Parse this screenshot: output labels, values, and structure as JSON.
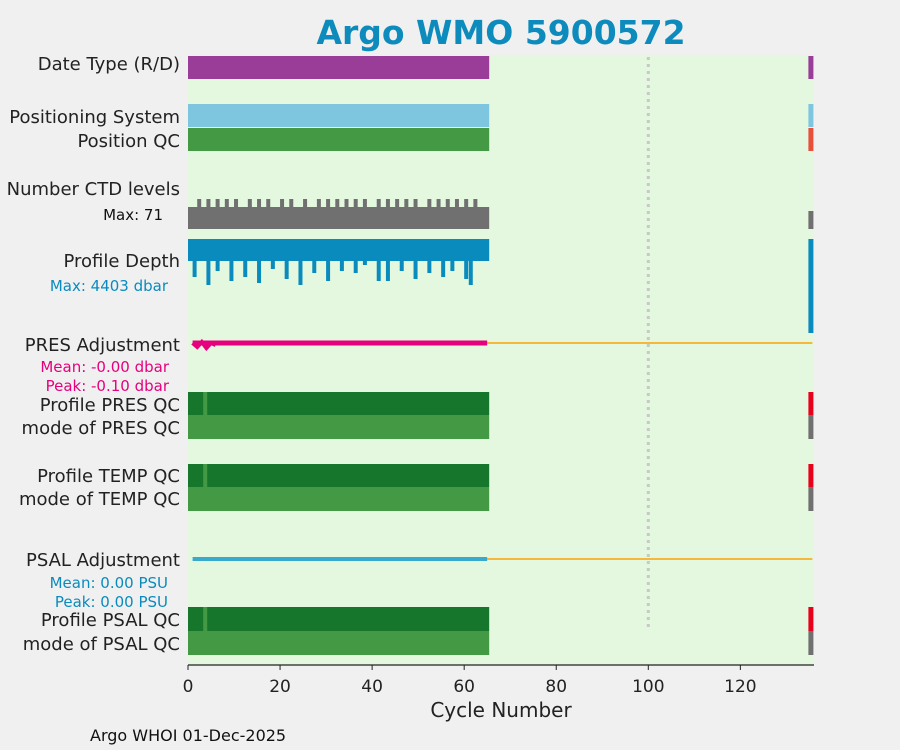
{
  "title": "Argo WMO 5900572",
  "footer": "Argo WHOI 01-Dec-2025",
  "xlabel": "Cycle Number",
  "colors": {
    "background_plot": "#e3f8df",
    "page": "#f0f0f0",
    "title": "#0e8bbd",
    "purple": "#993d99",
    "light_blue": "#7ec6e0",
    "green": "#449944",
    "dark_green": "#16772c",
    "gray": "#707070",
    "blue": "#0a8bbd",
    "magenta": "#e6007e",
    "orange": "#f5b83d",
    "red": "#e8001c",
    "red_light": "#e8503c",
    "psal_blue": "#39a9cc",
    "dotted": "#c8c8c8"
  },
  "rows": {
    "date_type": "Date Type (R/D)",
    "positioning_system": "Positioning System",
    "position_qc": "Position QC",
    "n_ctd": "Number CTD levels",
    "n_ctd_max": "Max: 71",
    "profile_depth": "Profile Depth",
    "profile_depth_max": "Max: 4403 dbar",
    "pres_adj": "PRES Adjustment",
    "pres_adj_mean": "Mean: -0.00 dbar",
    "pres_adj_peak": "Peak: -0.10 dbar",
    "profile_pres_qc": "Profile PRES QC",
    "mode_pres_qc": "mode of PRES QC",
    "profile_temp_qc": "Profile TEMP QC",
    "mode_temp_qc": "mode of TEMP QC",
    "psal_adj": "PSAL Adjustment",
    "psal_adj_mean": "Mean: 0.00 PSU",
    "psal_adj_peak": "Peak: 0.00 PSU",
    "profile_psal_qc": "Profile PSAL QC",
    "mode_psal_qc": "mode of PSAL QC"
  },
  "chart_data": {
    "type": "bar",
    "title": "Argo WMO 5900572",
    "xlabel": "Cycle Number",
    "xlim": [
      0,
      136
    ],
    "xticks": [
      0,
      20,
      40,
      60,
      80,
      100,
      120
    ],
    "cycles_range": [
      0,
      65
    ],
    "last_cycle": 135,
    "dotted_marker_cycle": 100,
    "tracks": [
      {
        "name": "Date Type (R/D)",
        "range": [
          0,
          65
        ],
        "last": 135
      },
      {
        "name": "Positioning System",
        "range": [
          0,
          65
        ],
        "last": 135
      },
      {
        "name": "Position QC",
        "range": [
          0,
          65
        ],
        "last": 135
      },
      {
        "name": "Number CTD levels",
        "range": [
          0,
          65
        ],
        "max": 71,
        "last": 135
      },
      {
        "name": "Profile Depth",
        "range": [
          0,
          65
        ],
        "max_dbar": 4403,
        "last": 135
      },
      {
        "name": "PRES Adjustment",
        "range": [
          0,
          65
        ],
        "mean_dbar": -0.0,
        "peak_dbar": -0.1,
        "extends_to": 135
      },
      {
        "name": "Profile PRES QC",
        "range": [
          0,
          65
        ],
        "last": 135
      },
      {
        "name": "mode of PRES QC",
        "range": [
          0,
          65
        ],
        "last": 135
      },
      {
        "name": "Profile TEMP QC",
        "range": [
          0,
          65
        ],
        "last": 135
      },
      {
        "name": "mode of TEMP QC",
        "range": [
          0,
          65
        ],
        "last": 135
      },
      {
        "name": "PSAL Adjustment",
        "range": [
          0,
          65
        ],
        "mean_psu": 0.0,
        "peak_psu": 0.0,
        "extends_to": 135
      },
      {
        "name": "Profile PSAL QC",
        "range": [
          0,
          65
        ],
        "last": 135
      },
      {
        "name": "mode of PSAL QC",
        "range": [
          0,
          65
        ],
        "last": 135
      }
    ],
    "ctd_level_spikes": [
      2,
      4,
      6,
      8,
      10,
      13,
      15,
      17,
      20,
      22,
      25,
      28,
      30,
      32,
      34,
      36,
      38,
      41,
      43,
      45,
      47,
      49,
      52,
      54,
      56,
      58,
      60,
      62
    ],
    "depth_spikes": [
      [
        1,
        18
      ],
      [
        4,
        26
      ],
      [
        6,
        12
      ],
      [
        9,
        22
      ],
      [
        12,
        18
      ],
      [
        15,
        24
      ],
      [
        18,
        10
      ],
      [
        21,
        20
      ],
      [
        24,
        26
      ],
      [
        27,
        14
      ],
      [
        30,
        22
      ],
      [
        33,
        12
      ],
      [
        36,
        14
      ],
      [
        38,
        6
      ],
      [
        41,
        22
      ],
      [
        43,
        22
      ],
      [
        46,
        12
      ],
      [
        49,
        20
      ],
      [
        52,
        14
      ],
      [
        55,
        18
      ],
      [
        57,
        12
      ],
      [
        60,
        20
      ],
      [
        61,
        26
      ]
    ]
  }
}
